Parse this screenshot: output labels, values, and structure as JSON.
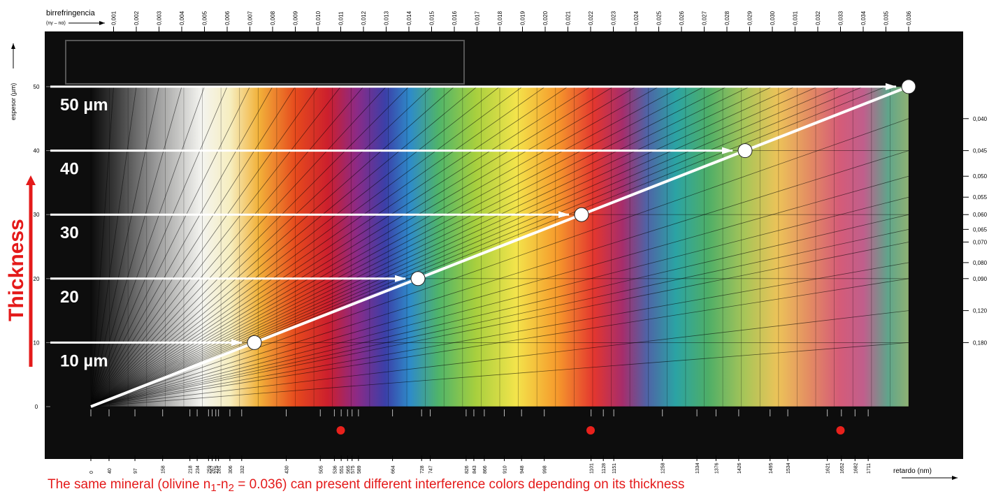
{
  "chart_data": {
    "type": "line",
    "title": "",
    "top_axis": {
      "label": "birrefringencia",
      "sublabel": "(nγ – nα)",
      "ticks": [
        "0,001",
        "0,002",
        "0,003",
        "0,004",
        "0,005",
        "0,006",
        "0,007",
        "0,008",
        "0,009",
        "0,010",
        "0,011",
        "0,012",
        "0,013",
        "0,014",
        "0,015",
        "0,016",
        "0,017",
        "0,018",
        "0,019",
        "0,020",
        "0,021",
        "0,022",
        "0,023",
        "0,024",
        "0,025",
        "0,026",
        "0,027",
        "0,028",
        "0,029",
        "0,030",
        "0,031",
        "0,032",
        "0,033",
        "0,034",
        "0,035",
        "0,036"
      ]
    },
    "left_axis": {
      "label": "espesor (µm)",
      "ticks": [
        0,
        10,
        20,
        30,
        40,
        50
      ],
      "ylim": [
        0,
        50
      ]
    },
    "bottom_axis": {
      "label": "retardo (nm)",
      "xlim": [
        0,
        1800
      ],
      "ticks": [
        0,
        40,
        97,
        158,
        218,
        234,
        259,
        267,
        275,
        281,
        306,
        332,
        430,
        505,
        536,
        551,
        565,
        575,
        589,
        664,
        728,
        747,
        826,
        843,
        866,
        910,
        948,
        998,
        1101,
        1128,
        1151,
        1258,
        1334,
        1376,
        1426,
        1495,
        1534,
        1621,
        1652,
        1682,
        1711
      ]
    },
    "right_axis": {
      "ticks": [
        "0,040",
        "0,045",
        "0,050",
        "0,055",
        "0,060",
        "0,065",
        "0,070",
        "0,080",
        "0,090",
        "0,120",
        "0,180"
      ]
    },
    "series": [
      {
        "x": [
          0,
          360,
          720,
          1080,
          1440,
          1800
        ],
        "y": [
          0,
          10,
          20,
          30,
          40,
          50
        ]
      }
    ],
    "thickness_labels": [
      "10 µm",
      "20",
      "30",
      "40",
      "50 µm"
    ],
    "thickness_values": [
      10,
      20,
      30,
      40,
      50
    ],
    "order_markers_nm": [
      550,
      1100,
      1650
    ],
    "annotation": "Thickness",
    "caption": {
      "prefix": "The same mineral (olivine n",
      "sub1": "1",
      "mid": "-n",
      "sub2": "2",
      "suffix": " = 0.036) can present different interference colors depending on its thickness"
    }
  }
}
